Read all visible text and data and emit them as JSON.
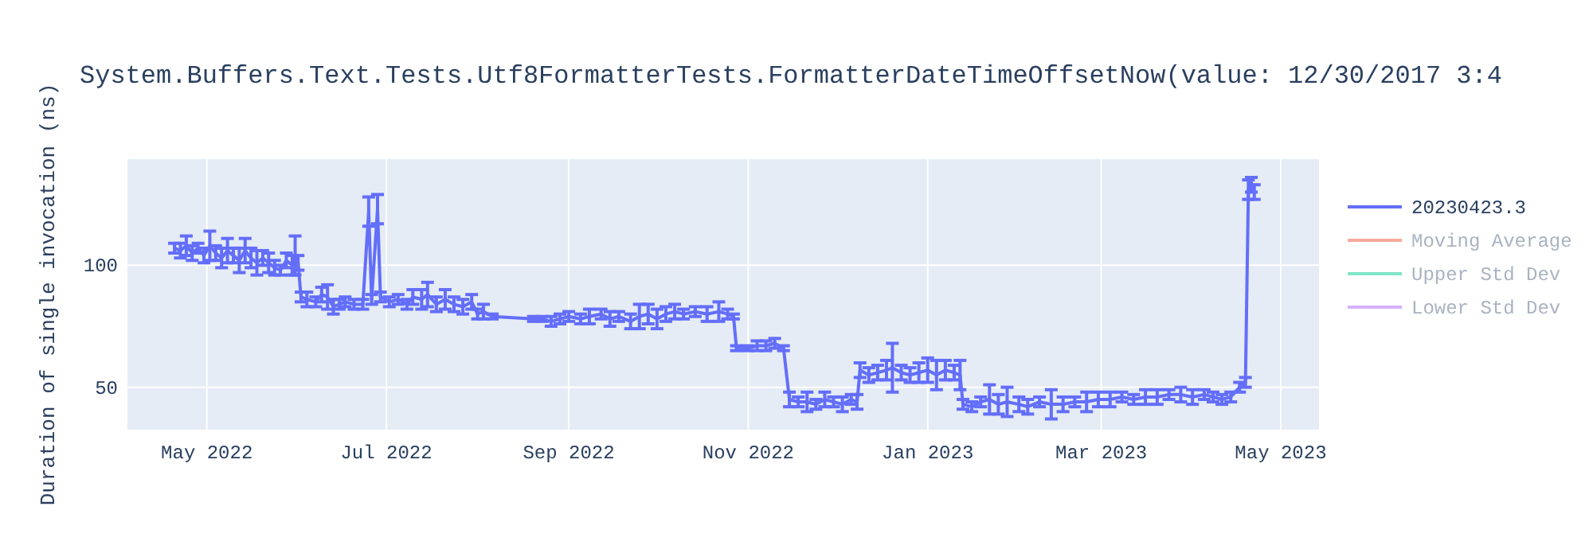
{
  "chart_data": {
    "type": "line",
    "title": "System.Buffers.Text.Tests.Utf8FormatterTests.FormatterDateTimeOffsetNow(value: 12/30/2017 3:4",
    "ylabel": "Duration of single invocation (ns)",
    "xlim": [
      "2022-04-04",
      "2023-05-14"
    ],
    "xticks": [
      {
        "value": "2022-05-01",
        "label": "May 2022"
      },
      {
        "value": "2022-07-01",
        "label": "Jul 2022"
      },
      {
        "value": "2022-09-01",
        "label": "Sep 2022"
      },
      {
        "value": "2022-11-01",
        "label": "Nov 2022"
      },
      {
        "value": "2023-01-01",
        "label": "Jan 2023"
      },
      {
        "value": "2023-03-01",
        "label": "Mar 2023"
      },
      {
        "value": "2023-05-01",
        "label": "May 2023"
      }
    ],
    "ylim": [
      32.6,
      143.5
    ],
    "yticks": [
      50,
      100
    ],
    "grid": true,
    "legend": "right",
    "series": [
      {
        "name": "20230423.3",
        "color": "#636efa",
        "x": [
          "2022-04-20",
          "2022-04-22",
          "2022-04-24",
          "2022-04-26",
          "2022-04-28",
          "2022-04-30",
          "2022-05-02",
          "2022-05-04",
          "2022-05-06",
          "2022-05-08",
          "2022-05-10",
          "2022-05-12",
          "2022-05-14",
          "2022-05-16",
          "2022-05-18",
          "2022-05-20",
          "2022-05-22",
          "2022-05-24",
          "2022-05-26",
          "2022-05-28",
          "2022-05-30",
          "2022-05-31",
          "2022-06-01",
          "2022-06-02",
          "2022-06-04",
          "2022-06-07",
          "2022-06-09",
          "2022-06-11",
          "2022-06-13",
          "2022-06-15",
          "2022-06-17",
          "2022-06-20",
          "2022-06-23",
          "2022-06-25",
          "2022-06-26",
          "2022-06-28",
          "2022-06-29",
          "2022-07-02",
          "2022-07-05",
          "2022-07-08",
          "2022-07-10",
          "2022-07-13",
          "2022-07-15",
          "2022-07-18",
          "2022-07-21",
          "2022-07-24",
          "2022-07-27",
          "2022-07-30",
          "2022-08-01",
          "2022-08-03",
          "2022-08-06",
          "2022-08-20",
          "2022-08-23",
          "2022-08-26",
          "2022-08-29",
          "2022-09-01",
          "2022-09-05",
          "2022-09-08",
          "2022-09-12",
          "2022-09-15",
          "2022-09-18",
          "2022-09-22",
          "2022-09-25",
          "2022-09-28",
          "2022-10-01",
          "2022-10-04",
          "2022-10-07",
          "2022-10-10",
          "2022-10-14",
          "2022-10-18",
          "2022-10-22",
          "2022-10-25",
          "2022-10-27",
          "2022-10-28",
          "2022-11-01",
          "2022-11-04",
          "2022-11-07",
          "2022-11-10",
          "2022-11-13",
          "2022-11-15",
          "2022-11-18",
          "2022-11-21",
          "2022-11-24",
          "2022-11-27",
          "2022-11-30",
          "2022-12-03",
          "2022-12-06",
          "2022-12-08",
          "2022-12-09",
          "2022-12-12",
          "2022-12-15",
          "2022-12-18",
          "2022-12-20",
          "2022-12-23",
          "2022-12-26",
          "2022-12-29",
          "2023-01-01",
          "2023-01-04",
          "2023-01-07",
          "2023-01-10",
          "2023-01-12",
          "2023-01-13",
          "2023-01-16",
          "2023-01-19",
          "2023-01-22",
          "2023-01-25",
          "2023-01-28",
          "2023-02-01",
          "2023-02-04",
          "2023-02-08",
          "2023-02-12",
          "2023-02-16",
          "2023-02-20",
          "2023-02-24",
          "2023-02-28",
          "2023-03-04",
          "2023-03-08",
          "2023-03-12",
          "2023-03-16",
          "2023-03-20",
          "2023-03-24",
          "2023-03-28",
          "2023-04-01",
          "2023-04-05",
          "2023-04-08",
          "2023-04-11",
          "2023-04-14",
          "2023-04-17",
          "2023-04-19",
          "2023-04-20",
          "2023-04-21",
          "2023-04-22"
        ],
        "values": [
          107,
          106,
          108,
          105,
          107,
          104,
          108,
          105,
          103,
          106,
          104,
          102,
          106,
          103,
          101,
          103,
          101,
          99,
          98,
          102,
          100,
          104,
          101,
          87,
          86,
          85,
          88,
          87,
          83,
          84,
          85,
          84,
          84,
          122,
          86,
          123,
          87,
          85,
          86,
          84,
          87,
          86,
          88,
          84,
          86,
          84,
          83,
          85,
          80,
          81,
          79,
          78,
          78,
          77,
          78,
          79,
          78,
          79,
          80,
          78,
          79,
          77,
          79,
          80,
          78,
          80,
          81,
          80,
          81,
          80,
          81,
          80,
          79,
          66,
          66,
          67,
          67,
          68,
          66,
          45,
          44,
          44,
          43,
          45,
          44,
          43,
          45,
          44,
          57,
          55,
          56,
          57,
          58,
          56,
          55,
          56,
          57,
          55,
          57,
          56,
          55,
          43,
          42,
          44,
          45,
          43,
          44,
          43,
          42,
          44,
          43,
          43,
          44,
          44,
          45,
          45,
          46,
          45,
          46,
          46,
          47,
          47,
          46,
          47,
          46,
          45,
          46,
          50,
          52,
          131,
          133,
          130
        ],
        "errors": [
          2,
          3,
          4,
          3,
          2,
          3,
          6,
          3,
          4,
          5,
          3,
          5,
          5,
          4,
          5,
          3,
          4,
          3,
          2,
          3,
          4,
          8,
          3,
          2,
          3,
          2,
          3,
          5,
          3,
          2,
          2,
          2,
          2,
          6,
          2,
          6,
          2,
          2,
          2,
          2,
          3,
          4,
          5,
          3,
          4,
          3,
          3,
          3,
          2,
          3,
          1,
          1,
          1,
          2,
          2,
          2,
          2,
          3,
          2,
          3,
          2,
          3,
          5,
          4,
          4,
          3,
          3,
          2,
          2,
          3,
          4,
          2,
          1,
          1,
          1,
          2,
          2,
          2,
          1,
          3,
          2,
          4,
          2,
          3,
          2,
          3,
          2,
          3,
          3,
          3,
          3,
          4,
          10,
          3,
          3,
          4,
          5,
          6,
          4,
          3,
          6,
          2,
          2,
          2,
          6,
          4,
          6,
          3,
          3,
          2,
          6,
          3,
          2,
          4,
          3,
          3,
          2,
          2,
          3,
          3,
          2,
          3,
          3,
          2,
          2,
          2,
          2,
          2,
          2,
          4,
          3,
          3
        ]
      },
      {
        "name": "Moving Average",
        "color": "#f7aa9d"
      },
      {
        "name": "Upper Std Dev",
        "color": "#80e5ca"
      },
      {
        "name": "Lower Std Dev",
        "color": "#d5b1fc"
      }
    ]
  }
}
